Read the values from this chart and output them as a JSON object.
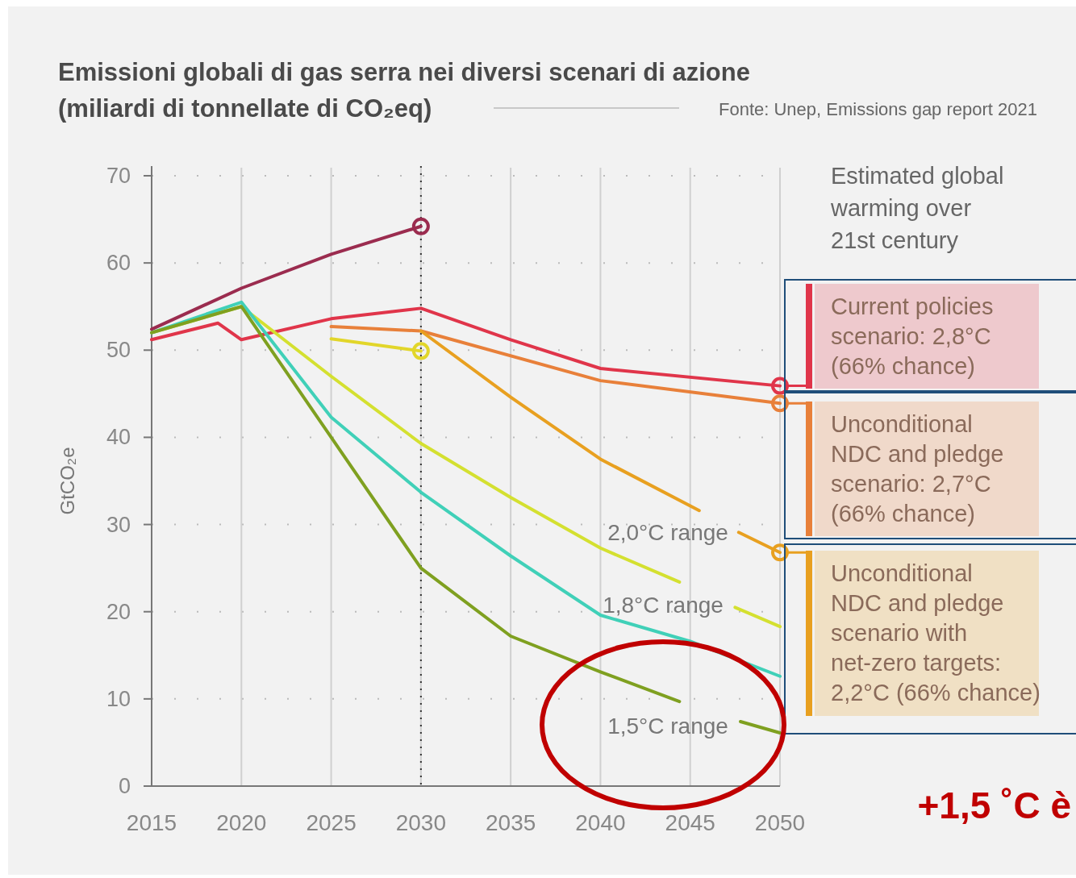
{
  "chart_data": {
    "type": "line",
    "title": "Emissioni globali di gas serra nei diversi scenari di azione",
    "subtitle": "(miliardi di tonnellate di CO₂eq)",
    "ylabel": "GtCO₂e",
    "xlim": [
      2015,
      2050
    ],
    "xticks": [
      2015,
      2020,
      2025,
      2030,
      2035,
      2040,
      2045,
      2050
    ],
    "ylim": [
      0,
      70
    ],
    "yticks": [
      0,
      10,
      20,
      30,
      40,
      50,
      60,
      70
    ],
    "grid": true,
    "line_style": "solid",
    "series": [
      {
        "color": "#9b2c4f",
        "x": [
          2015,
          2020,
          2025,
          2030
        ],
        "values": [
          52.4,
          57.1,
          61,
          64.2
        ]
      },
      {
        "color": "#e0354a",
        "x": [
          2015,
          2018.7,
          2020,
          2025,
          2030,
          2035,
          2040,
          2050
        ],
        "values": [
          51.2,
          53.1,
          51.2,
          53.6,
          54.8,
          51.2,
          47.9,
          45.9
        ]
      },
      {
        "color": "#e8803a",
        "x": [
          2025,
          2030,
          2040,
          2050
        ],
        "values": [
          52.7,
          52.2,
          46.5,
          43.9
        ]
      },
      {
        "color": "#e8a020",
        "x": [
          2030,
          2035,
          2040,
          2045.5,
          2046.6,
          2047.7,
          2050
        ],
        "values": [
          52.2,
          44.6,
          37.5,
          31.6,
          null,
          29.1,
          26.8
        ]
      },
      {
        "color": "#e2d62a",
        "x": [
          2025,
          2030
        ],
        "values": [
          51.3,
          49.9
        ]
      },
      {
        "color": "#d4e030",
        "x": [
          2015,
          2020,
          2025,
          2030,
          2035,
          2040,
          2044.4,
          2046,
          2047.5,
          2050
        ],
        "values": [
          52,
          55,
          47,
          39.3,
          33.1,
          27.3,
          23.4,
          null,
          20.5,
          18.3
        ]
      },
      {
        "color": "#40d0b8",
        "x": [
          2015,
          2020,
          2025,
          2030,
          2035,
          2040,
          2045,
          2050
        ],
        "values": [
          52,
          55.5,
          42.3,
          33.7,
          26.4,
          19.6,
          16.6,
          12.6
        ]
      },
      {
        "color": "#7fa020",
        "x": [
          2015,
          2020,
          2025,
          2030,
          2035,
          2040,
          2044.4,
          2046,
          2047.8,
          2050
        ],
        "values": [
          52,
          55,
          40,
          25,
          17.2,
          13.1,
          9.7,
          null,
          7.4,
          6.1
        ]
      },
      {
        "type": "scatter",
        "marker": "circle",
        "colors": [
          "#9b2c4f",
          "#e2d62a",
          "#e0354a",
          "#e8803a",
          "#e8a020"
        ],
        "x": [
          2030,
          2030,
          2050,
          2050,
          2050
        ],
        "values": [
          64.2,
          49.9,
          45.9,
          43.9,
          26.8
        ]
      }
    ],
    "ref_lines": [
      {
        "axis": "x",
        "value": 2030,
        "color": "#333333",
        "line_style": "dotted"
      }
    ],
    "annotations": [
      "Fonte: Unep, Emissions gap report 2021",
      "Estimated global\nwarming over\n21st century",
      "+1,5 ˚C è",
      "2,0°C range",
      "1,8°C range",
      "1,5°C range",
      "Current policies\nscenario: 2,8°C\n(66% chance)",
      "Unconditional\nNDC and pledge\nscenario: 2,7°C\n(66% chance)",
      "Unconditional\nNDC and pledge\nscenario with\nnet-zero targets:\n2,2°C (66% chance)"
    ]
  }
}
